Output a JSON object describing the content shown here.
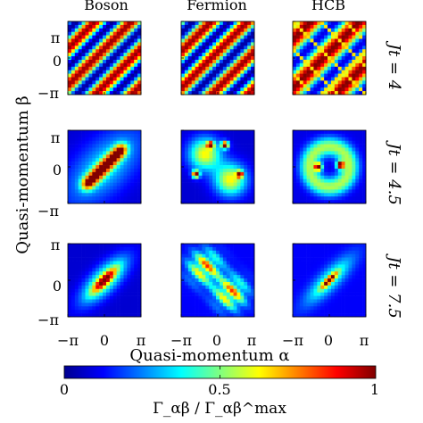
{
  "chart_data": {
    "type": "heatmap",
    "columns": [
      "Boson",
      "Fermion",
      "HCB"
    ],
    "rows": [
      {
        "label": "Jt = 4",
        "time": 4
      },
      {
        "label": "Jt = 4.5",
        "time": 4.5
      },
      {
        "label": "Jt = 7.5",
        "time": 7.5
      }
    ],
    "xlabel": "Quasi-momentum α",
    "ylabel": "Quasi-momentum β",
    "x_ticks": [
      "−π",
      "0",
      "π"
    ],
    "y_ticks": [
      "π",
      "0",
      "−π"
    ],
    "xlim": [
      "−π",
      "π"
    ],
    "ylim": [
      "−π",
      "π"
    ],
    "grid": [
      21,
      21
    ],
    "colormap": "jet",
    "colorbar": {
      "label": "Γ_αβ / Γ_αβ^max",
      "ticks": [
        "0",
        "0.5",
        "1"
      ],
      "range": [
        0,
        1
      ]
    }
  },
  "colors": {
    "jet": [
      "#00008f",
      "#0000ff",
      "#00ffff",
      "#ffff00",
      "#ff0000",
      "#800000"
    ]
  }
}
